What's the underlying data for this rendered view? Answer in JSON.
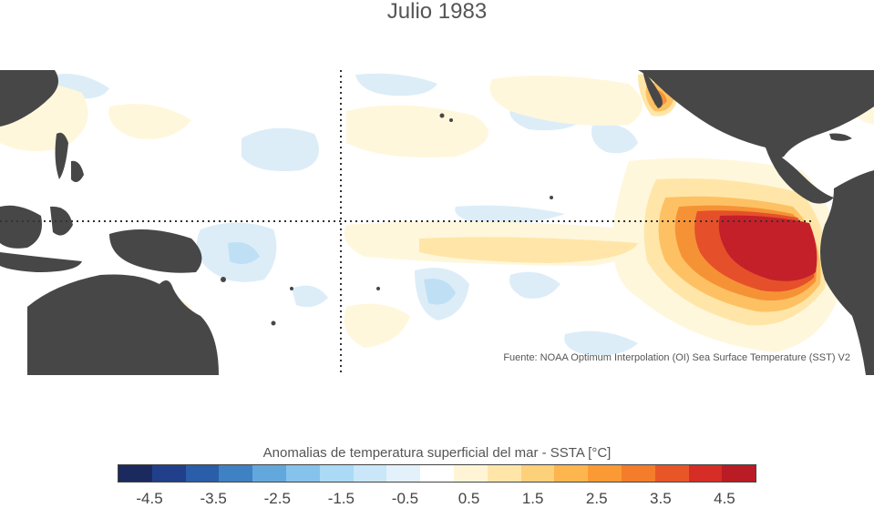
{
  "title": "Julio 1983",
  "source_note": "Fuente: NOAA Optimum Interpolation (OI) Sea Surface Temperature (SST) V2",
  "colorbar": {
    "title": "Anomalias de temperatura superficial del mar - SSTA  [°C]",
    "colors": [
      "#1b2a5e",
      "#213f8a",
      "#2a5ea8",
      "#3f82c3",
      "#62a8dd",
      "#86c3ec",
      "#aadaf5",
      "#c9e7f8",
      "#e2f1fa",
      "#ffffff",
      "#fff5d6",
      "#ffe6a8",
      "#fdd07a",
      "#fdb54d",
      "#fb9a34",
      "#f47c2a",
      "#e85628",
      "#d62d26",
      "#b91c24"
    ],
    "tick_values": [
      -4.5,
      -3.5,
      -2.5,
      -1.5,
      -0.5,
      0.5,
      1.5,
      2.5,
      3.5,
      4.5
    ],
    "tick_labels": [
      "-4.5",
      "-3.5",
      "-2.5",
      "-1.5",
      "-0.5",
      "0.5",
      "1.5",
      "2.5",
      "3.5",
      "4.5"
    ],
    "range": [
      -5,
      5
    ]
  },
  "map": {
    "land_color": "#474747",
    "ocean_color": "#ffffff",
    "reference_lines": [
      "equator",
      "dateline"
    ],
    "reference_line_style": "dotted"
  }
}
